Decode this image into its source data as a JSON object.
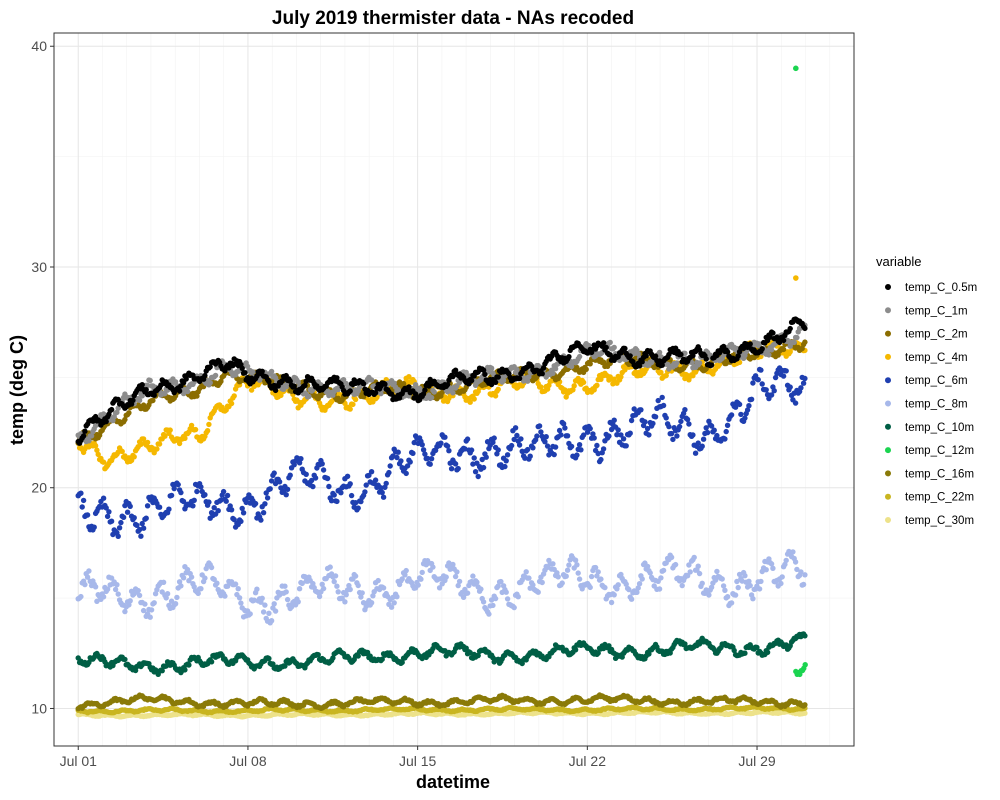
{
  "chart_data": {
    "type": "scatter",
    "title": "July 2019 thermister data - NAs recoded",
    "xlabel": "datetime",
    "ylabel": "temp (deg C)",
    "x_range": [
      "2019-06-30",
      "2019-08-02"
    ],
    "ylim": [
      8.3,
      40.6
    ],
    "x_ticks": [
      {
        "date": "2019-07-01",
        "label": "Jul 01"
      },
      {
        "date": "2019-07-08",
        "label": "Jul 08"
      },
      {
        "date": "2019-07-15",
        "label": "Jul 15"
      },
      {
        "date": "2019-07-22",
        "label": "Jul 22"
      },
      {
        "date": "2019-07-29",
        "label": "Jul 29"
      }
    ],
    "y_ticks": [
      10,
      20,
      30,
      40
    ],
    "grid": true,
    "legend": {
      "title": "variable",
      "placement": "right",
      "entries": [
        {
          "name": "temp_C_0.5m",
          "color": "#000000"
        },
        {
          "name": "temp_C_1m",
          "color": "#8c8c8c"
        },
        {
          "name": "temp_C_2m",
          "color": "#8b6d00"
        },
        {
          "name": "temp_C_4m",
          "color": "#f5b800"
        },
        {
          "name": "temp_C_6m",
          "color": "#1f3fb0"
        },
        {
          "name": "temp_C_8m",
          "color": "#a7b8ea"
        },
        {
          "name": "temp_C_10m",
          "color": "#005e45"
        },
        {
          "name": "temp_C_12m",
          "color": "#1bd450"
        },
        {
          "name": "temp_C_16m",
          "color": "#8a7a08"
        },
        {
          "name": "temp_C_22m",
          "color": "#c9b520"
        },
        {
          "name": "temp_C_30m",
          "color": "#ede28a"
        }
      ]
    },
    "series": [
      {
        "name": "temp_C_30m",
        "color": "#ede28a",
        "x": [
          "2019-07-01",
          "2019-07-08",
          "2019-07-15",
          "2019-07-22",
          "2019-07-29",
          "2019-07-31"
        ],
        "y": [
          9.7,
          9.7,
          9.75,
          9.8,
          9.8,
          9.8
        ],
        "noise": 0.06
      },
      {
        "name": "temp_C_22m",
        "color": "#c9b520",
        "x": [
          "2019-07-01",
          "2019-07-08",
          "2019-07-15",
          "2019-07-22",
          "2019-07-29",
          "2019-07-31"
        ],
        "y": [
          9.9,
          9.9,
          9.95,
          9.95,
          10.0,
          10.0
        ],
        "noise": 0.08
      },
      {
        "name": "temp_C_16m",
        "color": "#8a7a08",
        "x": [
          "2019-07-01",
          "2019-07-04",
          "2019-07-08",
          "2019-07-15",
          "2019-07-22",
          "2019-07-29",
          "2019-07-31"
        ],
        "y": [
          10.2,
          10.4,
          10.2,
          10.3,
          10.4,
          10.3,
          10.3
        ],
        "noise": 0.18
      },
      {
        "name": "temp_C_12m",
        "color": "#1bd450",
        "x": [
          "2019-07-30.6",
          "2019-07-30.8",
          "2019-07-31"
        ],
        "y": [
          11.8,
          11.7,
          11.8
        ],
        "noise": 0.25,
        "outliers": [
          {
            "x": "2019-07-30.6",
            "y": 39.0
          }
        ]
      },
      {
        "name": "temp_C_10m",
        "color": "#005e45",
        "x": [
          "2019-07-01",
          "2019-07-03",
          "2019-07-06",
          "2019-07-08",
          "2019-07-12",
          "2019-07-15",
          "2019-07-18",
          "2019-07-22",
          "2019-07-26",
          "2019-07-29",
          "2019-07-31"
        ],
        "y": [
          12.2,
          11.9,
          12.1,
          12.1,
          12.2,
          12.6,
          12.4,
          12.6,
          12.7,
          12.8,
          13.0
        ],
        "noise": 0.35
      },
      {
        "name": "temp_C_8m",
        "color": "#a7b8ea",
        "x": [
          "2019-07-01",
          "2019-07-03",
          "2019-07-06",
          "2019-07-08",
          "2019-07-12",
          "2019-07-15",
          "2019-07-18",
          "2019-07-22",
          "2019-07-26",
          "2019-07-29",
          "2019-07-31"
        ],
        "y": [
          15.0,
          15.2,
          15.5,
          15.0,
          15.3,
          15.8,
          15.4,
          15.9,
          15.8,
          15.9,
          16.0
        ],
        "noise": 0.9
      },
      {
        "name": "temp_C_6m",
        "color": "#1f3fb0",
        "x": [
          "2019-07-01",
          "2019-07-03",
          "2019-07-06",
          "2019-07-08",
          "2019-07-10",
          "2019-07-12",
          "2019-07-15",
          "2019-07-18",
          "2019-07-20",
          "2019-07-22",
          "2019-07-25",
          "2019-07-27",
          "2019-07-29",
          "2019-07-31"
        ],
        "y": [
          18.5,
          19.0,
          19.2,
          19.5,
          20.3,
          20.0,
          21.2,
          22.0,
          21.5,
          22.5,
          22.8,
          22.6,
          24.2,
          24.5
        ],
        "noise": 1.0
      },
      {
        "name": "temp_C_4m",
        "color": "#f5b800",
        "x": [
          "2019-07-01",
          "2019-07-02",
          "2019-07-04",
          "2019-07-06",
          "2019-07-07",
          "2019-07-08",
          "2019-07-10",
          "2019-07-12",
          "2019-07-15",
          "2019-07-18",
          "2019-07-22",
          "2019-07-25",
          "2019-07-27",
          "2019-07-29",
          "2019-07-31"
        ],
        "y": [
          22.2,
          21.5,
          21.8,
          22.4,
          24.0,
          25.0,
          23.8,
          24.2,
          24.4,
          24.5,
          24.8,
          25.3,
          25.6,
          26.0,
          26.6
        ],
        "noise": 0.5,
        "outliers": [
          {
            "x": "2019-07-30.6",
            "y": 29.5
          }
        ]
      },
      {
        "name": "temp_C_2m",
        "color": "#8b6d00",
        "x": [
          "2019-07-01",
          "2019-07-02",
          "2019-07-04",
          "2019-07-06",
          "2019-07-07",
          "2019-07-08",
          "2019-07-10",
          "2019-07-12",
          "2019-07-15",
          "2019-07-18",
          "2019-07-22",
          "2019-07-25",
          "2019-07-27",
          "2019-07-29",
          "2019-07-31"
        ],
        "y": [
          22.3,
          22.8,
          23.8,
          24.6,
          25.2,
          24.9,
          24.6,
          24.3,
          24.4,
          24.8,
          25.6,
          25.8,
          25.6,
          26.0,
          26.8
        ],
        "noise": 0.35
      },
      {
        "name": "temp_C_1m",
        "color": "#8c8c8c",
        "x": [
          "2019-07-01",
          "2019-07-02",
          "2019-07-04",
          "2019-07-06",
          "2019-07-07",
          "2019-07-08",
          "2019-07-10",
          "2019-07-12",
          "2019-07-15",
          "2019-07-18",
          "2019-07-22",
          "2019-07-25",
          "2019-07-27",
          "2019-07-29",
          "2019-07-31"
        ],
        "y": [
          22.4,
          23.0,
          24.4,
          25.0,
          25.4,
          25.0,
          24.8,
          24.4,
          24.5,
          24.9,
          26.0,
          26.0,
          25.6,
          26.4,
          27.2
        ],
        "noise": 0.45
      },
      {
        "name": "temp_C_0.5m",
        "color": "#000000",
        "x": [
          "2019-07-01",
          "2019-07-02",
          "2019-07-04",
          "2019-07-06",
          "2019-07-07",
          "2019-07-08",
          "2019-07-10",
          "2019-07-12",
          "2019-07-15",
          "2019-07-18",
          "2019-07-22",
          "2019-07-25",
          "2019-07-27",
          "2019-07-29",
          "2019-07-31"
        ],
        "y": [
          22.4,
          23.0,
          24.6,
          25.1,
          25.5,
          25.0,
          24.9,
          24.4,
          24.5,
          25.0,
          26.2,
          26.0,
          25.7,
          26.6,
          27.4
        ],
        "noise": 0.45
      }
    ]
  }
}
